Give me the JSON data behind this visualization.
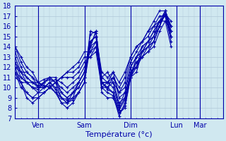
{
  "title": "Température (°c)",
  "ylabel": "",
  "xlabel": "Température (°c)",
  "bg_color": "#d0e8f0",
  "grid_color": "#b0c8d8",
  "line_color": "#0000aa",
  "marker": "+",
  "ylim": [
    7,
    18
  ],
  "yticks": [
    7,
    8,
    9,
    10,
    11,
    12,
    13,
    14,
    15,
    16,
    17,
    18
  ],
  "xtick_labels": [
    "Ven",
    "Sam",
    "Dim",
    "Lun",
    "Mar"
  ],
  "xtick_positions": [
    24,
    72,
    120,
    168,
    192
  ],
  "time_span": 216,
  "series": [
    [
      14.0,
      13.0,
      12.0,
      11.5,
      10.5,
      10.0,
      10.2,
      9.5,
      9.0,
      8.5,
      8.8,
      9.5,
      10.5,
      15.5,
      15.3,
      10.5,
      10.0,
      9.5,
      7.5,
      8.0,
      11.0,
      11.5,
      13.5,
      14.0,
      14.5,
      16.0,
      17.5,
      15.5
    ],
    [
      14.0,
      12.5,
      11.5,
      11.0,
      10.0,
      10.0,
      10.5,
      9.8,
      8.5,
      8.5,
      9.5,
      10.0,
      11.0,
      15.2,
      15.5,
      10.0,
      9.5,
      9.2,
      7.2,
      8.5,
      11.5,
      12.0,
      14.0,
      14.5,
      15.0,
      16.5,
      17.0,
      15.0
    ],
    [
      13.5,
      12.0,
      11.0,
      10.5,
      10.2,
      10.5,
      11.0,
      10.5,
      9.0,
      8.8,
      9.0,
      10.5,
      11.5,
      14.5,
      15.0,
      9.5,
      9.0,
      9.0,
      7.5,
      8.2,
      11.0,
      12.5,
      13.0,
      14.0,
      14.5,
      16.0,
      17.2,
      16.0
    ],
    [
      13.0,
      11.5,
      11.5,
      11.0,
      10.5,
      10.2,
      10.0,
      9.5,
      8.5,
      8.0,
      8.5,
      9.5,
      10.5,
      14.0,
      14.5,
      10.5,
      9.8,
      9.5,
      7.8,
      8.8,
      11.5,
      12.0,
      13.5,
      14.5,
      15.5,
      16.5,
      17.5,
      15.5
    ],
    [
      12.5,
      11.0,
      10.5,
      10.0,
      10.0,
      10.5,
      10.8,
      10.5,
      9.5,
      9.0,
      9.5,
      10.0,
      11.0,
      14.0,
      15.5,
      10.0,
      10.5,
      10.0,
      8.0,
      9.0,
      11.5,
      12.5,
      13.0,
      13.5,
      14.5,
      16.0,
      17.2,
      16.5
    ],
    [
      12.0,
      11.5,
      11.0,
      10.5,
      10.0,
      10.0,
      10.5,
      10.0,
      9.0,
      8.5,
      9.0,
      9.5,
      10.5,
      14.5,
      15.0,
      10.5,
      10.0,
      10.5,
      8.2,
      9.5,
      11.0,
      13.0,
      13.5,
      14.0,
      15.0,
      16.5,
      17.0,
      16.0
    ],
    [
      11.5,
      11.0,
      10.5,
      10.0,
      9.8,
      10.5,
      11.0,
      11.0,
      9.5,
      9.0,
      9.5,
      10.5,
      11.5,
      14.0,
      15.5,
      11.0,
      11.5,
      10.5,
      8.5,
      9.0,
      11.0,
      12.0,
      13.0,
      13.5,
      14.0,
      15.5,
      16.5,
      15.5
    ],
    [
      11.0,
      10.5,
      10.5,
      10.5,
      10.5,
      10.8,
      11.0,
      10.5,
      10.0,
      9.5,
      10.0,
      10.5,
      11.5,
      14.5,
      15.0,
      11.5,
      11.0,
      11.5,
      9.0,
      9.5,
      12.0,
      13.0,
      13.5,
      14.5,
      15.0,
      16.0,
      17.5,
      16.0
    ],
    [
      11.5,
      10.0,
      9.5,
      9.0,
      9.5,
      10.0,
      10.5,
      10.8,
      10.5,
      10.0,
      10.5,
      11.0,
      12.0,
      13.5,
      14.5,
      11.0,
      10.5,
      10.5,
      9.5,
      10.0,
      12.0,
      13.0,
      14.0,
      14.5,
      15.5,
      16.5,
      17.0,
      15.0
    ],
    [
      11.5,
      10.5,
      9.0,
      8.5,
      9.0,
      9.5,
      10.0,
      10.5,
      11.0,
      11.0,
      11.0,
      11.5,
      12.5,
      13.0,
      14.0,
      10.5,
      10.5,
      11.0,
      9.5,
      10.5,
      12.5,
      13.5,
      14.5,
      15.0,
      16.0,
      17.0,
      17.0,
      14.5
    ],
    [
      12.0,
      10.5,
      9.5,
      9.0,
      9.0,
      9.5,
      10.0,
      10.5,
      11.0,
      11.5,
      11.5,
      12.0,
      13.0,
      13.0,
      13.5,
      10.0,
      10.0,
      11.0,
      10.0,
      11.0,
      13.0,
      14.0,
      14.5,
      15.5,
      16.0,
      16.5,
      16.5,
      14.0
    ],
    [
      12.5,
      11.5,
      10.5,
      10.0,
      9.5,
      9.5,
      10.0,
      10.5,
      11.0,
      11.5,
      12.0,
      12.5,
      13.5,
      13.5,
      14.0,
      10.5,
      10.5,
      11.5,
      10.5,
      11.5,
      13.0,
      14.0,
      14.5,
      15.5,
      16.5,
      17.5,
      17.5,
      15.0
    ]
  ],
  "time_steps": [
    0,
    6,
    12,
    18,
    24,
    30,
    36,
    42,
    48,
    54,
    60,
    66,
    72,
    78,
    84,
    90,
    96,
    102,
    108,
    114,
    120,
    126,
    132,
    138,
    144,
    150,
    156,
    162
  ]
}
